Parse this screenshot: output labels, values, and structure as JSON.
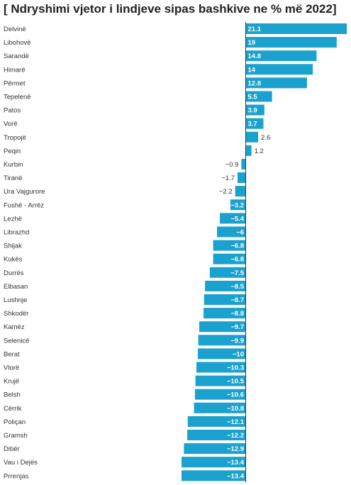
{
  "chart_data": {
    "type": "bar",
    "orientation": "horizontal",
    "title": "[ Ndryshimi vjetor i lindjeve sipas bashkive ne % më 2022]",
    "xlabel": "",
    "ylabel": "",
    "xlim": [
      -13.4,
      21.1
    ],
    "grid": false,
    "bar_color": "#1ba1cd",
    "categories": [
      "Delvinë",
      "Libohovë",
      "Sarandë",
      "Himarë",
      "Përmet",
      "Tepelenë",
      "Patos",
      "Vorë",
      "Tropojë",
      "Peqin",
      "Kurbin",
      "Tiranë",
      "Ura Vajgurore",
      "Fushë - Arrëz",
      "Lezhë",
      "Librazhd",
      "Shijak",
      "Kukës",
      "Durrës",
      "Elbasan",
      "Lushnje",
      "Shkodër",
      "Kamëz",
      "Selenicë",
      "Berat",
      "Vlorë",
      "Krujë",
      "Belsh",
      "Cërrik",
      "Poliçan",
      "Gramsh",
      "Dibër",
      "Vau i Dejës",
      "Prrenjas"
    ],
    "values": [
      21.1,
      19,
      14.8,
      14,
      12.8,
      5.5,
      3.9,
      3.7,
      2.6,
      1.2,
      -0.9,
      -1.7,
      -2.2,
      -3.2,
      -5.4,
      -6,
      -6.8,
      -6.8,
      -7.5,
      -8.5,
      -8.7,
      -8.8,
      -9.7,
      -9.9,
      -10,
      -10.3,
      -10.5,
      -10.6,
      -10.8,
      -12.1,
      -12.2,
      -12.9,
      -13.4,
      -13.4
    ],
    "value_labels": [
      "21.1",
      "19",
      "14.8",
      "14",
      "12.8",
      "5.5",
      "3.9",
      "3.7",
      "2.6",
      "1.2",
      "−0.9",
      "−1.7",
      "−2.2",
      "−3.2",
      "−5.4",
      "−6",
      "−6.8",
      "−6.8",
      "−7.5",
      "−8.5",
      "−8.7",
      "−8.8",
      "−9.7",
      "−9.9",
      "−10",
      "−10.3",
      "−10.5",
      "−10.6",
      "−10.8",
      "−12.1",
      "−12.2",
      "−12.9",
      "−13.4",
      "−13.4"
    ]
  }
}
